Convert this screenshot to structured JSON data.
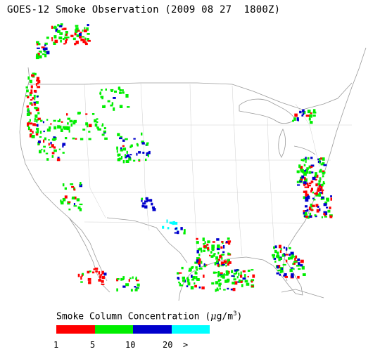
{
  "title": "GOES-12 Smoke Observation (2009 08 27  1800Z)",
  "legend": {
    "title_prefix": "Smoke Column Concentration (",
    "unit_mu": "μ",
    "unit_rest": "g/m",
    "unit_sup": "3",
    "title_suffix": ")",
    "ticks": [
      "1",
      "5",
      "10",
      "20",
      ">"
    ],
    "colors": [
      "#ff0000",
      "#00ee00",
      "#0000cc",
      "#00ffff"
    ],
    "category_ranges": [
      "1-5",
      "5-10",
      "10-20",
      ">20"
    ]
  },
  "smoke_classes": {
    "red": "#ff0000",
    "green": "#00ee00",
    "blue": "#0000cc",
    "cyan": "#00ffff"
  }
}
